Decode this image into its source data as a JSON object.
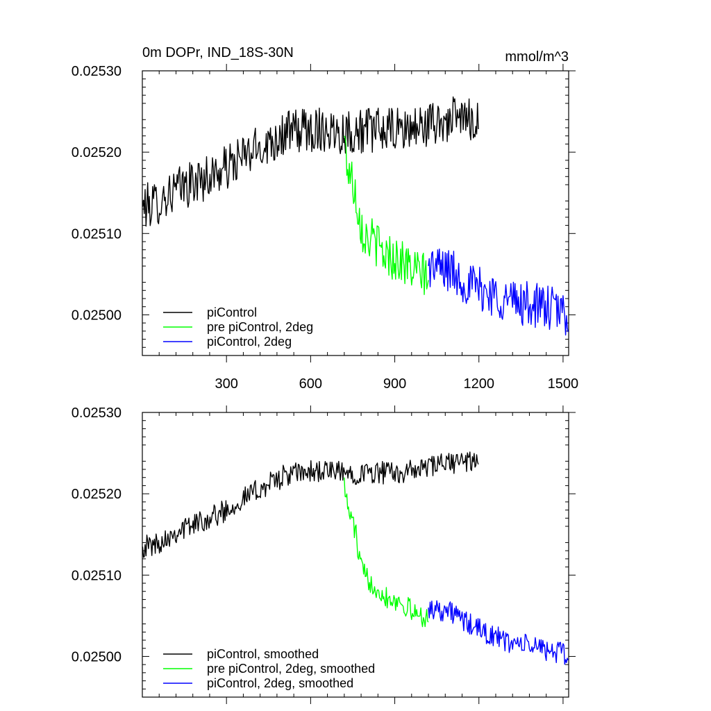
{
  "chart_data": [
    {
      "type": "line",
      "title": "0m DOPr, IND_18S-30N",
      "units": "mmol/m^3",
      "xlim": [
        0,
        1520
      ],
      "ylim": [
        0.02495,
        0.0253
      ],
      "xticks": [
        300,
        600,
        900,
        1200,
        1500
      ],
      "yticks": [
        0.025,
        0.0251,
        0.0252,
        0.0253
      ],
      "ytick_labels": [
        "0.02500",
        "0.02510",
        "0.02520",
        "0.02530"
      ],
      "xtick_labels": [
        "300",
        "600",
        "900",
        "1200",
        "1500"
      ],
      "show_xtick_labels": true,
      "legend_position": "bottom-left",
      "series": [
        {
          "name": "piControl",
          "color": "#000000",
          "x": [
            1,
            50,
            100,
            150,
            200,
            250,
            300,
            350,
            400,
            450,
            500,
            550,
            600,
            650,
            700,
            750,
            800,
            850,
            900,
            950,
            1000,
            1050,
            1100,
            1150,
            1200
          ],
          "y": [
            0.025133,
            0.025137,
            0.02515,
            0.025158,
            0.025165,
            0.025172,
            0.02518,
            0.025192,
            0.025202,
            0.025212,
            0.025222,
            0.025226,
            0.025228,
            0.025229,
            0.025226,
            0.025225,
            0.025227,
            0.025227,
            0.025226,
            0.025228,
            0.025232,
            0.025236,
            0.02524,
            0.025241,
            0.02524
          ]
        },
        {
          "name": "pre piControl, 2deg",
          "color": "#00ff00",
          "x": [
            720,
            730,
            745,
            760,
            770,
            785,
            800,
            830,
            860,
            900,
            930,
            960,
            990,
            1020
          ],
          "y": [
            0.02522,
            0.025185,
            0.02517,
            0.02515,
            0.02513,
            0.025105,
            0.025095,
            0.02509,
            0.025075,
            0.02507,
            0.025065,
            0.025055,
            0.02505,
            0.02505
          ]
        },
        {
          "name": "piControl, 2deg",
          "color": "#0000ff",
          "x": [
            1020,
            1060,
            1100,
            1150,
            1200,
            1250,
            1300,
            1350,
            1400,
            1450,
            1500,
            1520
          ],
          "y": [
            0.02506,
            0.025058,
            0.025055,
            0.02504,
            0.025032,
            0.025025,
            0.025018,
            0.025015,
            0.025012,
            0.025008,
            0.025003,
            0.025
          ]
        }
      ]
    },
    {
      "type": "line",
      "title": "",
      "xlim": [
        0,
        1520
      ],
      "ylim": [
        0.02495,
        0.0253
      ],
      "xticks": [
        300,
        600,
        900,
        1200,
        1500
      ],
      "yticks": [
        0.025,
        0.0251,
        0.0252,
        0.0253
      ],
      "ytick_labels": [
        "0.02500",
        "0.02510",
        "0.02520",
        "0.02530"
      ],
      "xtick_labels": [],
      "show_xtick_labels": false,
      "legend_position": "bottom-left",
      "series": [
        {
          "name": "piControl, smoothed",
          "color": "#000000",
          "x": [
            1,
            50,
            100,
            150,
            200,
            250,
            300,
            350,
            400,
            450,
            500,
            550,
            600,
            650,
            700,
            750,
            800,
            850,
            900,
            950,
            1000,
            1050,
            1100,
            1150,
            1200
          ],
          "y": [
            0.025135,
            0.025138,
            0.02515,
            0.025158,
            0.025165,
            0.025172,
            0.02518,
            0.025192,
            0.025202,
            0.025212,
            0.025221,
            0.025225,
            0.025227,
            0.025228,
            0.025226,
            0.025225,
            0.025226,
            0.025226,
            0.025226,
            0.025227,
            0.025231,
            0.025235,
            0.025238,
            0.02524,
            0.025239
          ]
        },
        {
          "name": "pre piControl, 2deg, smoothed",
          "color": "#00ff00",
          "x": [
            720,
            730,
            745,
            760,
            770,
            785,
            800,
            830,
            860,
            900,
            930,
            960,
            990,
            1020
          ],
          "y": [
            0.02522,
            0.025185,
            0.02517,
            0.025155,
            0.025125,
            0.025105,
            0.025095,
            0.025088,
            0.025075,
            0.02507,
            0.025065,
            0.025055,
            0.02505,
            0.02505
          ]
        },
        {
          "name": "piControl, 2deg, smoothed",
          "color": "#0000ff",
          "x": [
            1020,
            1060,
            1100,
            1150,
            1200,
            1250,
            1300,
            1350,
            1400,
            1450,
            1500,
            1520
          ],
          "y": [
            0.02506,
            0.025058,
            0.025055,
            0.025042,
            0.025033,
            0.025025,
            0.025018,
            0.025015,
            0.025012,
            0.025008,
            0.025003,
            0.025
          ]
        }
      ]
    }
  ]
}
